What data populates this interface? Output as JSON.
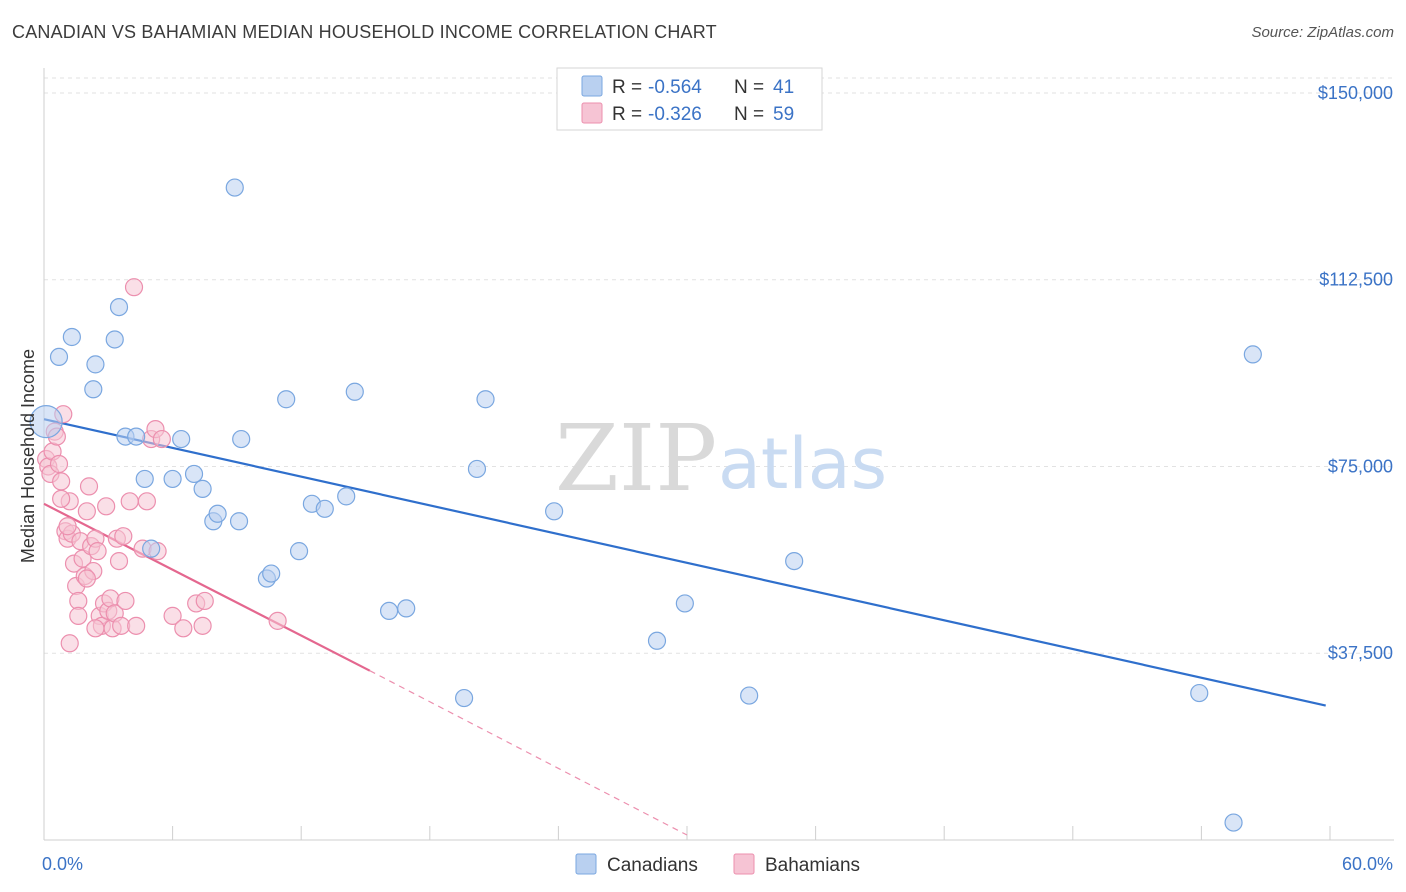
{
  "title": "CANADIAN VS BAHAMIAN MEDIAN HOUSEHOLD INCOME CORRELATION CHART",
  "source": "Source: ZipAtlas.com",
  "watermark": {
    "zip": "ZIP",
    "atlas": "atlas"
  },
  "colors": {
    "canadians": "#7aa7e0",
    "canadians_fill": "#b9d0f0",
    "canadians_line": "#2f6fcc",
    "bahamians": "#ec8fae",
    "bahamians_fill": "#f6c4d4",
    "bahamians_line": "#e4678f",
    "tick_text": "#3b73c6",
    "grid": "#e2e2e2"
  },
  "legend": {
    "rows": [
      {
        "r_label": "R = ",
        "r_value": "-0.564",
        "n_label": "N = ",
        "n_value": "41"
      },
      {
        "r_label": "R = ",
        "r_value": "-0.326",
        "n_label": "N = ",
        "n_value": "59"
      }
    ]
  },
  "chart_data": {
    "type": "scatter",
    "title": "CANADIAN VS BAHAMIAN MEDIAN HOUSEHOLD INCOME CORRELATION CHART",
    "xlabel": "",
    "ylabel": "Median Household Income",
    "xlim": [
      0,
      60
    ],
    "ylim": [
      0,
      153000
    ],
    "x_tick_labels": [
      "0.0%",
      "60.0%"
    ],
    "y_ticks": [
      37500,
      75000,
      112500,
      150000
    ],
    "y_tick_labels": [
      "$37,500",
      "$75,000",
      "$112,500",
      "$150,000"
    ],
    "grid": true,
    "legend_position": "bottom-center",
    "series": [
      {
        "name": "Canadians",
        "r": -0.564,
        "n": 41,
        "trend": {
          "x": [
            0,
            59.8
          ],
          "y": [
            84500,
            27000
          ]
        },
        "points": [
          [
            0.1,
            84000
          ],
          [
            0.7,
            97000
          ],
          [
            1.3,
            101000
          ],
          [
            2.4,
            95500
          ],
          [
            2.3,
            90500
          ],
          [
            3.5,
            107000
          ],
          [
            3.3,
            100500
          ],
          [
            3.8,
            81000
          ],
          [
            4.3,
            81000
          ],
          [
            4.7,
            72500
          ],
          [
            5.0,
            58500
          ],
          [
            6.0,
            72500
          ],
          [
            6.4,
            80500
          ],
          [
            7.0,
            73500
          ],
          [
            7.4,
            70500
          ],
          [
            7.9,
            64000
          ],
          [
            8.1,
            65500
          ],
          [
            8.9,
            131000
          ],
          [
            9.1,
            64000
          ],
          [
            9.2,
            80500
          ],
          [
            10.4,
            52500
          ],
          [
            10.6,
            53500
          ],
          [
            11.3,
            88500
          ],
          [
            11.9,
            58000
          ],
          [
            12.5,
            67500
          ],
          [
            13.1,
            66500
          ],
          [
            14.1,
            69000
          ],
          [
            14.5,
            90000
          ],
          [
            16.1,
            46000
          ],
          [
            16.9,
            46500
          ],
          [
            19.6,
            28500
          ],
          [
            20.2,
            74500
          ],
          [
            20.6,
            88500
          ],
          [
            23.8,
            66000
          ],
          [
            28.6,
            40000
          ],
          [
            29.9,
            47500
          ],
          [
            32.9,
            29000
          ],
          [
            35.0,
            56000
          ],
          [
            53.9,
            29500
          ],
          [
            56.4,
            97500
          ],
          [
            55.5,
            3500
          ]
        ]
      },
      {
        "name": "Bahamians",
        "r": -0.326,
        "n": 59,
        "trend": {
          "x": [
            0,
            15.2
          ],
          "y": [
            67500,
            34000
          ]
        },
        "trend_extension": {
          "x": [
            15.2,
            30.0
          ],
          "y": [
            34000,
            1000
          ]
        },
        "points": [
          [
            0.1,
            76500
          ],
          [
            0.2,
            75000
          ],
          [
            0.3,
            73500
          ],
          [
            0.4,
            78000
          ],
          [
            0.5,
            82000
          ],
          [
            0.6,
            81000
          ],
          [
            0.7,
            75500
          ],
          [
            0.8,
            72000
          ],
          [
            0.9,
            85500
          ],
          [
            1.0,
            62000
          ],
          [
            1.1,
            60500
          ],
          [
            1.2,
            68000
          ],
          [
            1.3,
            61500
          ],
          [
            1.4,
            55500
          ],
          [
            1.5,
            51000
          ],
          [
            1.6,
            48000
          ],
          [
            1.7,
            60000
          ],
          [
            1.8,
            56500
          ],
          [
            1.9,
            53000
          ],
          [
            2.0,
            66000
          ],
          [
            2.1,
            71000
          ],
          [
            2.2,
            59000
          ],
          [
            2.3,
            54000
          ],
          [
            2.4,
            60500
          ],
          [
            2.5,
            58000
          ],
          [
            2.6,
            45000
          ],
          [
            2.7,
            43000
          ],
          [
            2.8,
            47500
          ],
          [
            2.9,
            67000
          ],
          [
            3.0,
            46000
          ],
          [
            3.1,
            48500
          ],
          [
            3.2,
            42500
          ],
          [
            3.3,
            45500
          ],
          [
            3.4,
            60500
          ],
          [
            3.5,
            56000
          ],
          [
            3.6,
            43000
          ],
          [
            3.7,
            61000
          ],
          [
            3.8,
            48000
          ],
          [
            4.0,
            68000
          ],
          [
            4.2,
            111000
          ],
          [
            4.3,
            43000
          ],
          [
            4.6,
            58500
          ],
          [
            4.8,
            68000
          ],
          [
            5.0,
            80500
          ],
          [
            5.2,
            82500
          ],
          [
            5.3,
            58000
          ],
          [
            5.5,
            80500
          ],
          [
            6.0,
            45000
          ],
          [
            6.5,
            42500
          ],
          [
            7.1,
            47500
          ],
          [
            7.4,
            43000
          ],
          [
            7.5,
            48000
          ],
          [
            10.9,
            44000
          ],
          [
            1.2,
            39500
          ],
          [
            1.6,
            45000
          ],
          [
            2.0,
            52500
          ],
          [
            2.4,
            42500
          ],
          [
            0.8,
            68500
          ],
          [
            1.1,
            63000
          ]
        ]
      }
    ]
  }
}
